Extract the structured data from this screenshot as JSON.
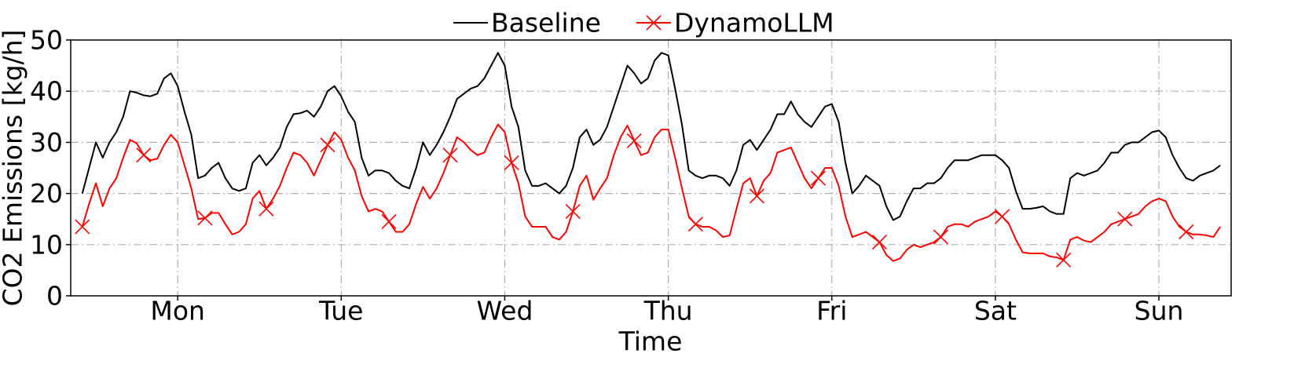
{
  "chart_data": {
    "type": "line",
    "xlabel": "Time",
    "ylabel": "CO2 Emissions [kg/h]",
    "x": [
      0,
      1,
      2,
      3,
      4,
      5,
      6,
      7,
      8,
      9,
      10,
      11,
      12,
      13,
      14,
      15,
      16,
      17,
      18,
      19,
      20,
      21,
      22,
      23,
      24,
      25,
      26,
      27,
      28,
      29,
      30,
      31,
      32,
      33,
      34,
      35,
      36,
      37,
      38,
      39,
      40,
      41,
      42,
      43,
      44,
      45,
      46,
      47,
      48,
      49,
      50,
      51,
      52,
      53,
      54,
      55,
      56,
      57,
      58,
      59,
      60,
      61,
      62,
      63,
      64,
      65,
      66,
      67,
      68,
      69,
      70,
      71,
      72,
      73,
      74,
      75,
      76,
      77,
      78,
      79,
      80,
      81,
      82,
      83,
      84,
      85,
      86,
      87,
      88,
      89,
      90,
      91,
      92,
      93,
      94,
      95,
      96,
      97,
      98,
      99,
      100,
      101,
      102,
      103,
      104,
      105,
      106,
      107,
      108,
      109,
      110,
      111,
      112,
      113,
      114,
      115,
      116,
      117,
      118,
      119,
      120,
      121,
      122,
      123,
      124,
      125,
      126,
      127,
      128,
      129,
      130,
      131,
      132,
      133,
      134,
      135,
      136,
      137,
      138,
      139,
      140,
      141,
      142,
      143,
      144,
      145,
      146,
      147,
      148,
      149,
      150,
      151,
      152,
      153,
      154,
      155,
      156,
      157,
      158,
      159,
      160,
      161,
      162,
      163,
      164,
      165,
      166,
      167
    ],
    "series": [
      {
        "name": "Baseline",
        "color": "#000000",
        "marker": "none",
        "values": [
          20,
          25,
          30,
          27,
          30,
          32,
          35,
          40,
          39.7,
          39.2,
          39,
          39.5,
          42.5,
          43.5,
          41,
          36,
          31.5,
          23,
          23.5,
          25,
          26,
          23,
          21,
          20.5,
          21,
          26,
          27.5,
          25.5,
          27,
          29,
          33,
          35.5,
          35.7,
          36.2,
          35,
          37,
          40,
          41,
          39,
          36,
          34,
          27,
          23.5,
          24.5,
          24.5,
          24,
          22.5,
          21.5,
          21,
          25,
          30,
          27.5,
          29.5,
          32,
          35,
          38.5,
          39.5,
          40.5,
          41,
          42.5,
          45,
          47.5,
          45,
          37,
          33,
          24.5,
          21.5,
          21.5,
          22,
          21,
          20,
          21.5,
          25,
          31,
          32.5,
          29.5,
          30.5,
          33,
          37,
          41,
          45,
          43.5,
          41.5,
          42.5,
          46,
          47.5,
          47,
          40.5,
          33.5,
          24.5,
          23.5,
          23,
          23.5,
          23.5,
          23,
          21.5,
          24.5,
          29.5,
          30.5,
          28.5,
          30.5,
          32.5,
          35.5,
          35.5,
          38,
          35.5,
          34,
          33,
          35,
          37,
          37.5,
          34,
          26,
          20,
          21.5,
          23.5,
          22.5,
          21.5,
          17.5,
          14.8,
          15.5,
          18.5,
          21,
          21,
          22,
          22,
          23,
          25,
          26.5,
          26.5,
          26.5,
          27,
          27.5,
          27.5,
          27.5,
          26.5,
          25,
          20.5,
          17,
          17,
          17.2,
          17.5,
          16.5,
          16,
          16,
          23,
          24,
          23.5,
          24,
          24.5,
          26,
          28,
          28,
          29.5,
          30,
          30,
          31,
          32,
          32.3,
          31,
          27.5,
          25,
          23,
          22.5,
          23.5,
          24,
          24.5,
          25.5
        ]
      },
      {
        "name": "DynamoLLM",
        "color": "#ff0000",
        "marker": "x",
        "markevery": 9,
        "values": [
          13.5,
          18,
          22,
          17.5,
          21,
          23,
          27,
          30.5,
          29.8,
          27.5,
          26.5,
          26.8,
          29.5,
          31.5,
          30,
          25.5,
          21,
          15,
          15.2,
          16.2,
          16.2,
          14,
          12,
          12.5,
          14,
          19,
          20.5,
          17,
          19,
          21.5,
          25,
          28,
          27.5,
          26,
          23.5,
          26.5,
          29.5,
          32,
          30.5,
          27,
          24.5,
          19.5,
          16.5,
          17,
          16.5,
          14.5,
          12.5,
          12.5,
          14,
          18,
          21.3,
          19,
          21,
          24,
          27.5,
          31,
          30,
          28.5,
          27.5,
          28,
          31,
          33.5,
          32,
          26,
          22,
          15.5,
          13.5,
          13.5,
          13.5,
          11.5,
          11,
          12.5,
          16.5,
          21.5,
          23.5,
          18.8,
          21,
          23,
          27.5,
          31,
          33.3,
          30.3,
          27.5,
          28,
          31,
          32.5,
          32.5,
          27,
          21,
          15.5,
          14,
          13.5,
          13.5,
          12.8,
          11.5,
          11.8,
          17,
          22,
          23,
          19.5,
          22.5,
          24,
          28,
          28.5,
          29,
          26,
          23,
          21,
          23,
          25,
          25,
          21.5,
          15.5,
          11.5,
          12,
          12.5,
          11.5,
          10.5,
          8,
          6.8,
          7.3,
          9,
          10,
          9.5,
          10,
          10.5,
          11.5,
          13.5,
          14,
          14,
          13.5,
          14.5,
          15,
          15.5,
          16.5,
          15.5,
          14,
          11,
          8.5,
          8.3,
          8.3,
          8.3,
          7.7,
          7.5,
          7,
          11,
          11.5,
          10.8,
          10.5,
          11.5,
          12.5,
          14,
          14.5,
          15,
          15.5,
          16,
          17.5,
          18.5,
          19,
          18.5,
          15.5,
          13.5,
          12.5,
          12,
          12,
          11.8,
          11.5,
          13.5
        ]
      }
    ],
    "xlim": [
      -1.7,
      168.6
    ],
    "xticks": [
      {
        "value": 14,
        "label": "Mon"
      },
      {
        "value": 38,
        "label": "Tue"
      },
      {
        "value": 62,
        "label": "Wed"
      },
      {
        "value": 86,
        "label": "Thu"
      },
      {
        "value": 110,
        "label": "Fri"
      },
      {
        "value": 134,
        "label": "Sat"
      },
      {
        "value": 158,
        "label": "Sun"
      }
    ],
    "ylim": [
      0,
      50
    ],
    "yticks": [
      0,
      10,
      20,
      30,
      40,
      50
    ],
    "grid": true,
    "legend": "top"
  }
}
